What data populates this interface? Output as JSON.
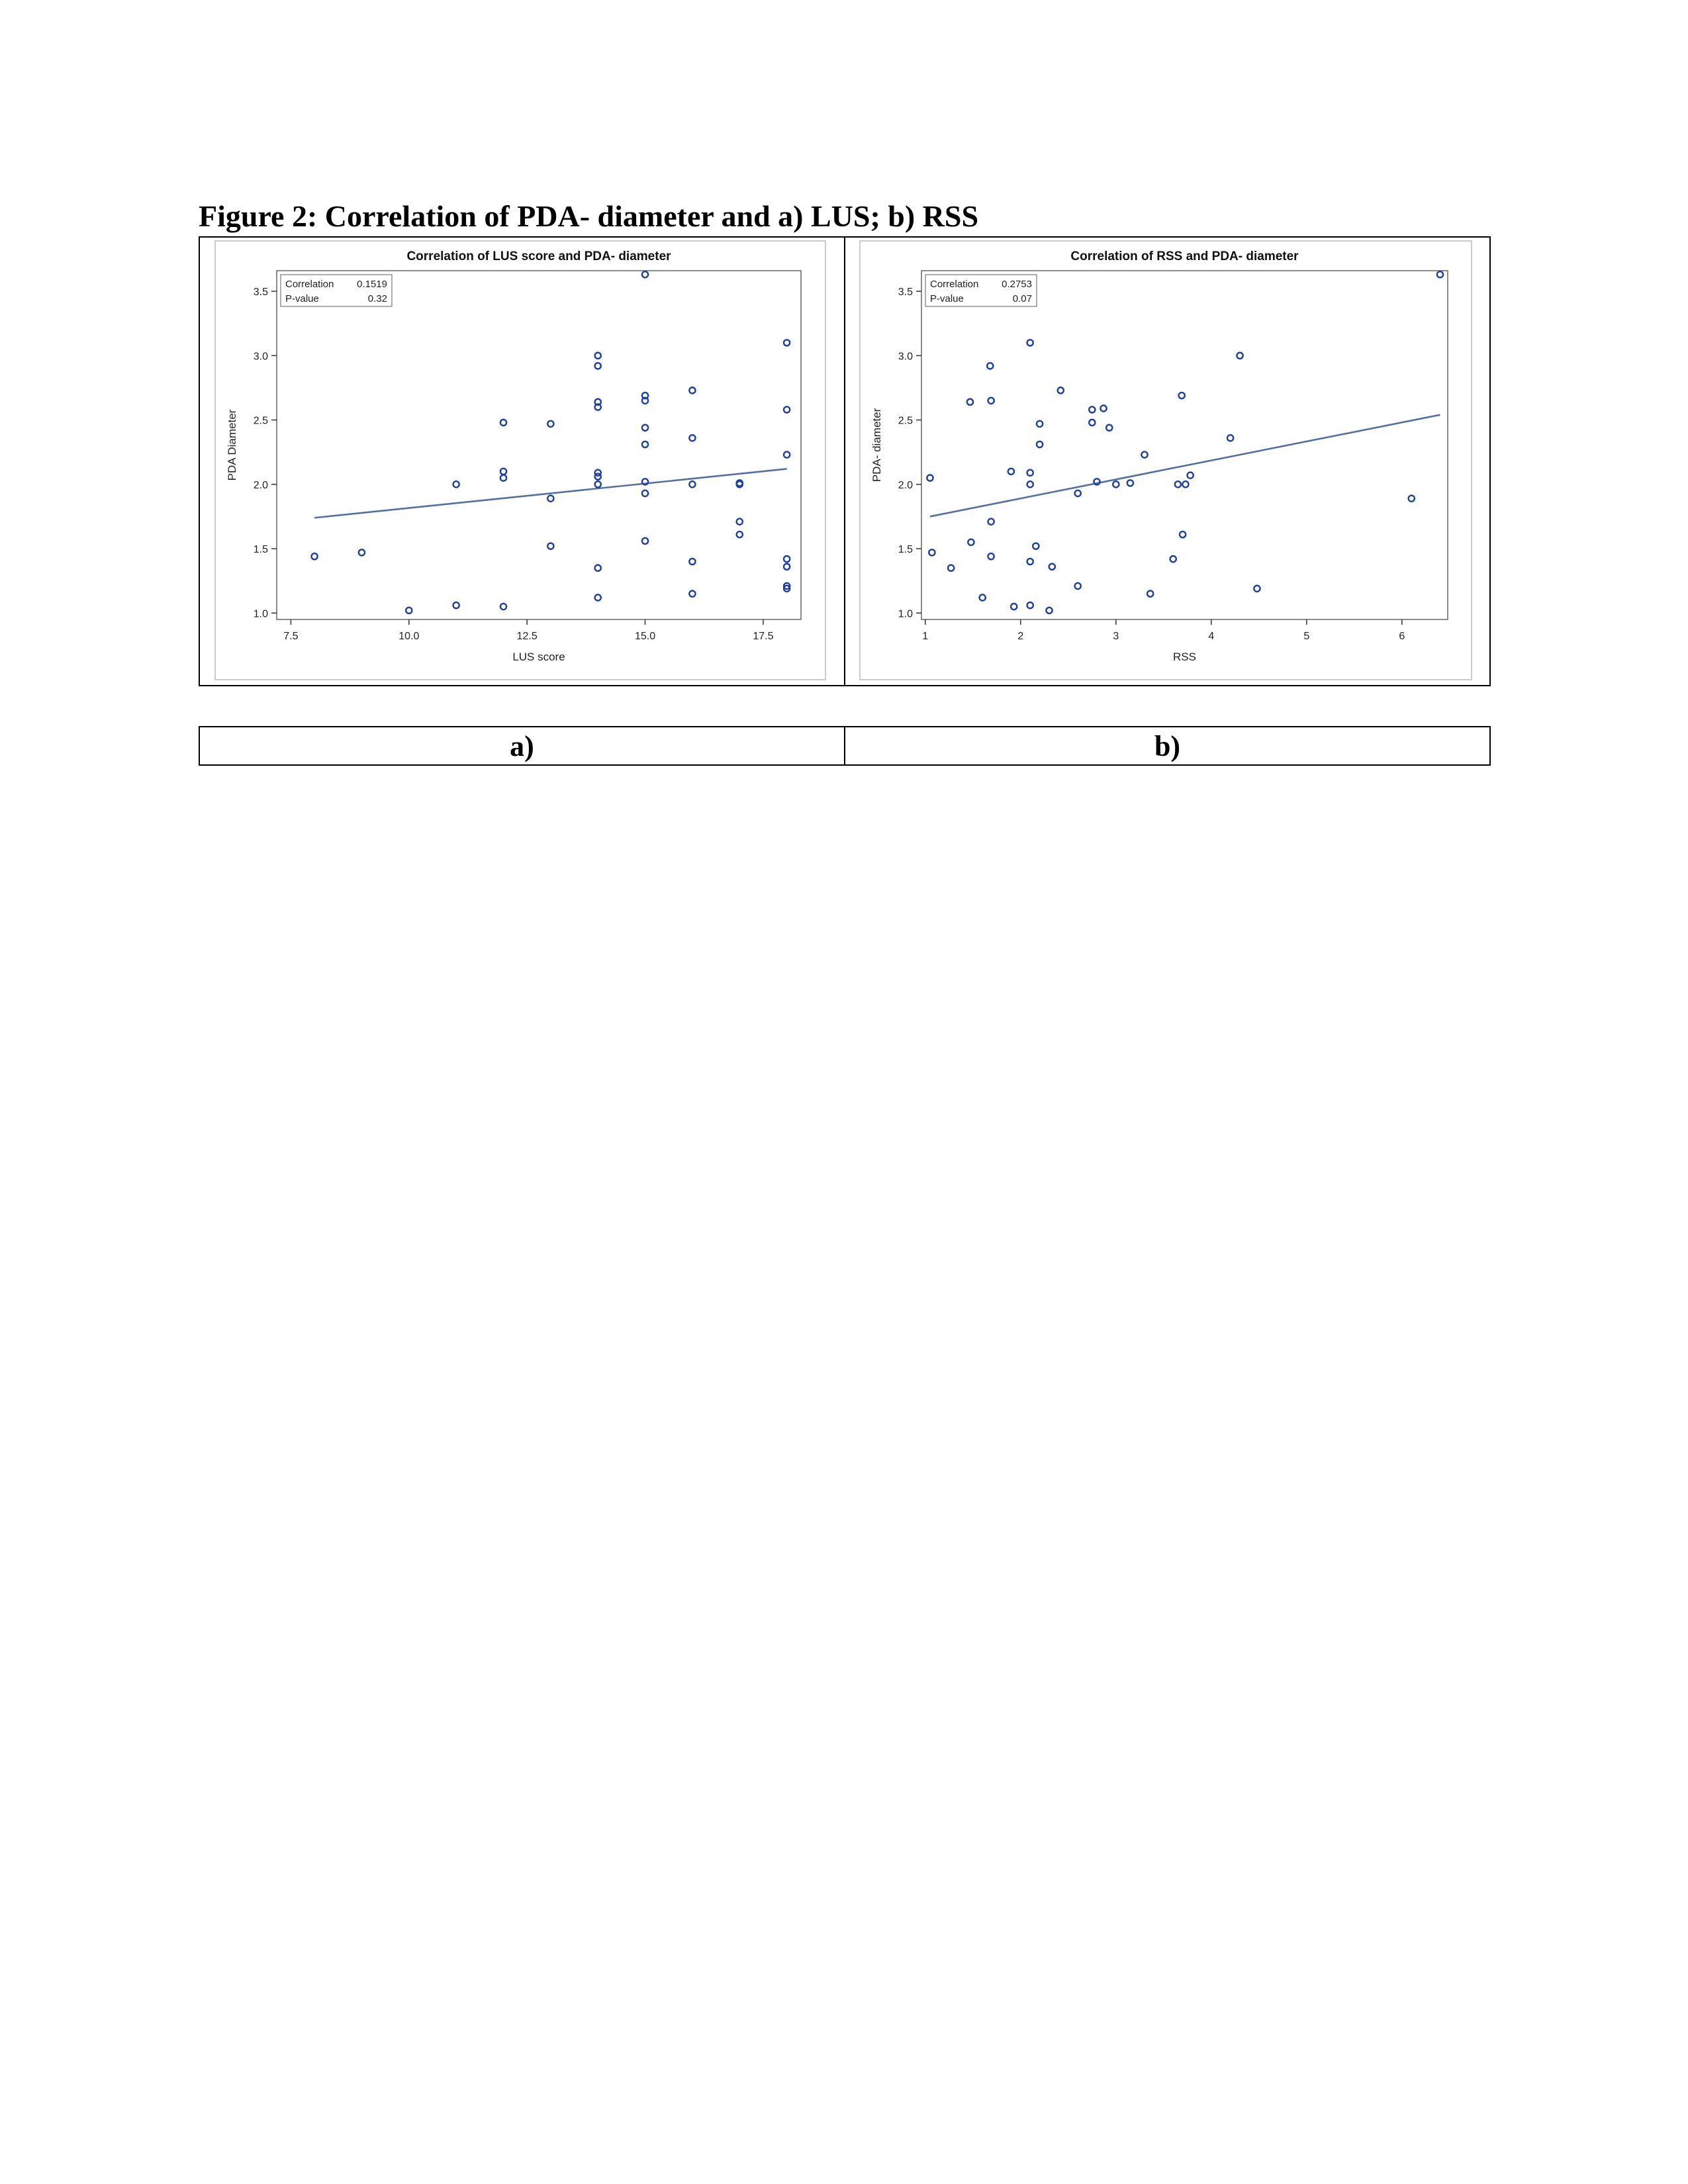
{
  "figure": {
    "title": "Figure 2: Correlation of PDA- diameter and a) LUS; b) RSS",
    "labels": [
      "a)",
      "b)"
    ]
  },
  "colors": {
    "marker": "#1f3f99",
    "fit_line": "#5470a0",
    "frame": "#666666",
    "outer_frame": "#cccccc"
  },
  "chart_data": [
    {
      "type": "scatter",
      "title": "Correlation of LUS score and PDA- diameter",
      "xlabel": "LUS score",
      "ylabel": "PDA Diameter",
      "xlim": [
        7.2,
        18.3
      ],
      "ylim": [
        0.95,
        3.66
      ],
      "xticks": [
        7.5,
        10.0,
        12.5,
        15.0,
        17.5
      ],
      "xtick_labels": [
        "7.5",
        "10.0",
        "12.5",
        "15.0",
        "17.5"
      ],
      "yticks": [
        1.0,
        1.5,
        2.0,
        2.5,
        3.0,
        3.5
      ],
      "ytick_labels": [
        "1.0",
        "1.5",
        "2.0",
        "2.5",
        "3.0",
        "3.5"
      ],
      "stats": {
        "rows": [
          {
            "label": "Correlation",
            "value": "0.1519"
          },
          {
            "label": "P-value",
            "value": "0.32"
          }
        ]
      },
      "fit_line": {
        "x": [
          8,
          18
        ],
        "y": [
          1.74,
          2.12
        ]
      },
      "points": [
        {
          "x": 8,
          "y": 1.44
        },
        {
          "x": 9,
          "y": 1.47
        },
        {
          "x": 10,
          "y": 1.02
        },
        {
          "x": 11,
          "y": 2.0
        },
        {
          "x": 11,
          "y": 1.06
        },
        {
          "x": 12,
          "y": 2.48
        },
        {
          "x": 12,
          "y": 2.1
        },
        {
          "x": 12,
          "y": 2.05
        },
        {
          "x": 12,
          "y": 1.05
        },
        {
          "x": 13,
          "y": 2.47
        },
        {
          "x": 13,
          "y": 1.89
        },
        {
          "x": 13,
          "y": 1.52
        },
        {
          "x": 14,
          "y": 3.0
        },
        {
          "x": 14,
          "y": 2.92
        },
        {
          "x": 14,
          "y": 2.64
        },
        {
          "x": 14,
          "y": 2.6
        },
        {
          "x": 14,
          "y": 2.09
        },
        {
          "x": 14,
          "y": 2.06
        },
        {
          "x": 14,
          "y": 2.0
        },
        {
          "x": 14,
          "y": 1.35
        },
        {
          "x": 14,
          "y": 1.12
        },
        {
          "x": 15,
          "y": 3.63
        },
        {
          "x": 15,
          "y": 2.69
        },
        {
          "x": 15,
          "y": 2.65
        },
        {
          "x": 15,
          "y": 2.44
        },
        {
          "x": 15,
          "y": 2.31
        },
        {
          "x": 15,
          "y": 2.02
        },
        {
          "x": 15,
          "y": 1.93
        },
        {
          "x": 15,
          "y": 1.56
        },
        {
          "x": 16,
          "y": 2.73
        },
        {
          "x": 16,
          "y": 2.36
        },
        {
          "x": 16,
          "y": 2.0
        },
        {
          "x": 16,
          "y": 1.4
        },
        {
          "x": 16,
          "y": 1.15
        },
        {
          "x": 17,
          "y": 2.01
        },
        {
          "x": 17,
          "y": 2.0
        },
        {
          "x": 17,
          "y": 1.71
        },
        {
          "x": 17,
          "y": 1.61
        },
        {
          "x": 18,
          "y": 3.1
        },
        {
          "x": 18,
          "y": 2.58
        },
        {
          "x": 18,
          "y": 2.23
        },
        {
          "x": 18,
          "y": 1.42
        },
        {
          "x": 18,
          "y": 1.36
        },
        {
          "x": 18,
          "y": 1.21
        },
        {
          "x": 18,
          "y": 1.19
        }
      ]
    },
    {
      "type": "scatter",
      "title": "Correlation of RSS and PDA- diameter",
      "xlabel": "RSS",
      "ylabel": "PDA- diameter",
      "xlim": [
        0.96,
        6.48
      ],
      "ylim": [
        0.95,
        3.66
      ],
      "xticks": [
        1,
        2,
        3,
        4,
        5,
        6
      ],
      "xtick_labels": [
        "1",
        "2",
        "3",
        "4",
        "5",
        "6"
      ],
      "yticks": [
        1.0,
        1.5,
        2.0,
        2.5,
        3.0,
        3.5
      ],
      "ytick_labels": [
        "1.0",
        "1.5",
        "2.0",
        "2.5",
        "3.0",
        "3.5"
      ],
      "stats": {
        "rows": [
          {
            "label": "Correlation",
            "value": "0.2753"
          },
          {
            "label": "P-value",
            "value": "0.07"
          }
        ]
      },
      "fit_line": {
        "x": [
          1.05,
          6.4
        ],
        "y": [
          1.75,
          2.54
        ]
      },
      "points": [
        {
          "x": 1.05,
          "y": 2.05
        },
        {
          "x": 1.07,
          "y": 1.47
        },
        {
          "x": 1.27,
          "y": 1.35
        },
        {
          "x": 1.47,
          "y": 2.64
        },
        {
          "x": 1.48,
          "y": 1.55
        },
        {
          "x": 1.6,
          "y": 1.12
        },
        {
          "x": 1.68,
          "y": 2.92
        },
        {
          "x": 1.69,
          "y": 2.65
        },
        {
          "x": 1.69,
          "y": 1.71
        },
        {
          "x": 1.69,
          "y": 1.44
        },
        {
          "x": 1.9,
          "y": 2.1
        },
        {
          "x": 1.93,
          "y": 1.05
        },
        {
          "x": 2.1,
          "y": 3.1
        },
        {
          "x": 2.1,
          "y": 2.09
        },
        {
          "x": 2.1,
          "y": 2.0
        },
        {
          "x": 2.1,
          "y": 1.4
        },
        {
          "x": 2.1,
          "y": 1.06
        },
        {
          "x": 2.16,
          "y": 1.52
        },
        {
          "x": 2.2,
          "y": 2.47
        },
        {
          "x": 2.2,
          "y": 2.31
        },
        {
          "x": 2.3,
          "y": 1.02
        },
        {
          "x": 2.33,
          "y": 1.36
        },
        {
          "x": 2.42,
          "y": 2.73
        },
        {
          "x": 2.6,
          "y": 1.93
        },
        {
          "x": 2.6,
          "y": 1.21
        },
        {
          "x": 2.75,
          "y": 2.58
        },
        {
          "x": 2.75,
          "y": 2.48
        },
        {
          "x": 2.8,
          "y": 2.02
        },
        {
          "x": 2.87,
          "y": 2.59
        },
        {
          "x": 2.93,
          "y": 2.44
        },
        {
          "x": 3.0,
          "y": 2.0
        },
        {
          "x": 3.15,
          "y": 2.01
        },
        {
          "x": 3.3,
          "y": 2.23
        },
        {
          "x": 3.36,
          "y": 1.15
        },
        {
          "x": 3.6,
          "y": 1.42
        },
        {
          "x": 3.65,
          "y": 2.0
        },
        {
          "x": 3.69,
          "y": 2.69
        },
        {
          "x": 3.7,
          "y": 1.61
        },
        {
          "x": 3.73,
          "y": 2.0
        },
        {
          "x": 3.78,
          "y": 2.07
        },
        {
          "x": 4.2,
          "y": 2.36
        },
        {
          "x": 4.3,
          "y": 3.0
        },
        {
          "x": 4.48,
          "y": 1.19
        },
        {
          "x": 6.1,
          "y": 1.89
        },
        {
          "x": 6.4,
          "y": 3.63
        }
      ]
    }
  ]
}
